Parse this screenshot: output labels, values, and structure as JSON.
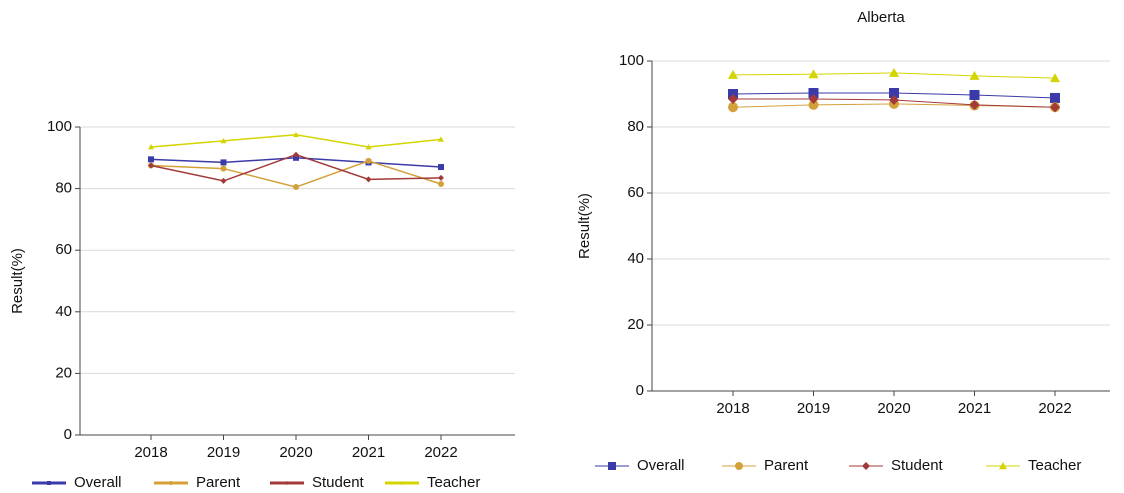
{
  "chart_data": [
    {
      "type": "line",
      "y_label": "Result(%)",
      "categories": [
        "2018",
        "2019",
        "2020",
        "2021",
        "2022"
      ],
      "ylim": [
        0,
        100
      ],
      "yticks": [
        0,
        20,
        40,
        60,
        80,
        100
      ],
      "grid": true,
      "series": [
        {
          "name": "Overall",
          "color": "#3a3aa8",
          "values": [
            89.5,
            88.5,
            90,
            88.5,
            87
          ]
        },
        {
          "name": "Parent",
          "color": "#d4a03a",
          "values": [
            87.5,
            86.5,
            80.5,
            89,
            81.5
          ]
        },
        {
          "name": "Student",
          "color": "#a33a3a",
          "values": [
            87.5,
            82.5,
            91,
            83,
            83.5
          ]
        },
        {
          "name": "Teacher",
          "color": "#d4d400",
          "values": [
            93.5,
            95.5,
            97.5,
            93.5,
            96
          ]
        }
      ]
    },
    {
      "type": "line",
      "title": "Alberta",
      "y_label": "Result(%)",
      "categories": [
        "2018",
        "2019",
        "2020",
        "2021",
        "2022"
      ],
      "ylim": [
        0,
        100
      ],
      "yticks": [
        0,
        20,
        40,
        60,
        80,
        100
      ],
      "grid": true,
      "series": [
        {
          "name": "Overall",
          "color": "#3a3aa8",
          "values": [
            90,
            90.3,
            90.3,
            89.7,
            88.8
          ]
        },
        {
          "name": "Parent",
          "color": "#d4a03a",
          "values": [
            86,
            86.7,
            87,
            86.5,
            86
          ]
        },
        {
          "name": "Student",
          "color": "#a33a3a",
          "values": [
            88.5,
            88.5,
            88.2,
            86.7,
            86
          ]
        },
        {
          "name": "Teacher",
          "color": "#d4d400",
          "values": [
            95.8,
            96,
            96.4,
            95.5,
            94.8
          ]
        }
      ]
    }
  ]
}
